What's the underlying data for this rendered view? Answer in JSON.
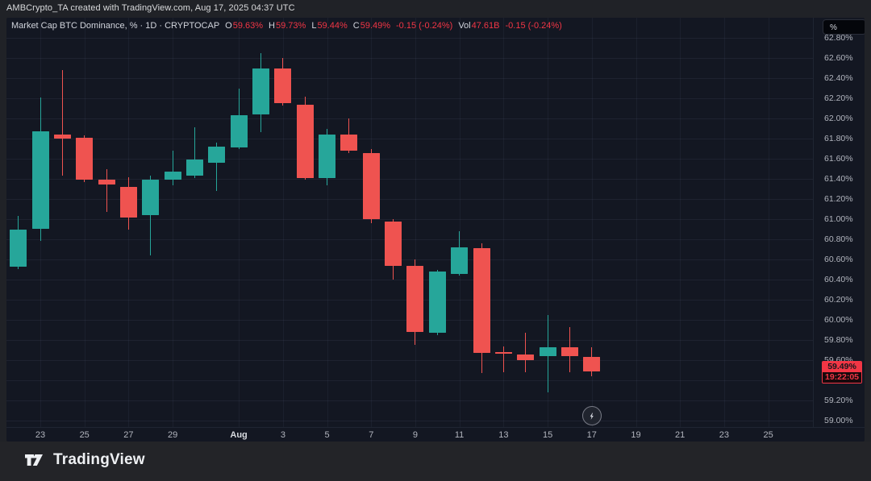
{
  "frame": {
    "attribution": "AMBCrypto_TA created with TradingView.com, Aug 17, 2025 04:37 UTC",
    "logo_text": "TradingView"
  },
  "toolbar": {
    "percent_button": "%"
  },
  "legend": {
    "title": "Market Cap BTC Dominance, % · 1D · CRYPTOCAP",
    "items": [
      {
        "label": "O",
        "value": "59.63%"
      },
      {
        "label": "H",
        "value": "59.73%"
      },
      {
        "label": "L",
        "value": "59.44%"
      },
      {
        "label": "C",
        "value": "59.49%"
      }
    ],
    "change": "-0.15 (-0.24%)",
    "vol_label": "Vol",
    "vol_value": "47.61B",
    "vol_change": "-0.15 (-0.24%)"
  },
  "price_label": {
    "value": 59.49,
    "price": "59.49%",
    "countdown": "19:22:05"
  },
  "colors": {
    "up": "#26a69a",
    "down": "#ef5350",
    "accent_red": "#f23645",
    "chart_bg": "#131722",
    "frame_bg": "#202227",
    "text": "#d1d4dc",
    "axis_text": "#b2b5be"
  },
  "chart_data": {
    "type": "candlestick",
    "title": "Market Cap BTC Dominance, %",
    "interval": "1D",
    "exchange": "CRYPTOCAP",
    "y_axis": {
      "top_value": 63.0,
      "bottom_value": 58.936,
      "ticks": [
        {
          "value": 62.8,
          "label": "62.80%"
        },
        {
          "value": 62.6,
          "label": "62.60%"
        },
        {
          "value": 62.4,
          "label": "62.40%"
        },
        {
          "value": 62.2,
          "label": "62.20%"
        },
        {
          "value": 62.0,
          "label": "62.00%"
        },
        {
          "value": 61.8,
          "label": "61.80%"
        },
        {
          "value": 61.6,
          "label": "61.60%"
        },
        {
          "value": 61.4,
          "label": "61.40%"
        },
        {
          "value": 61.2,
          "label": "61.20%"
        },
        {
          "value": 61.0,
          "label": "61.00%"
        },
        {
          "value": 60.8,
          "label": "60.80%"
        },
        {
          "value": 60.6,
          "label": "60.60%"
        },
        {
          "value": 60.4,
          "label": "60.40%"
        },
        {
          "value": 60.2,
          "label": "60.20%"
        },
        {
          "value": 60.0,
          "label": "60.00%"
        },
        {
          "value": 59.8,
          "label": "59.80%"
        },
        {
          "value": 59.6,
          "label": "59.60%"
        },
        {
          "value": 59.4,
          "label": ""
        },
        {
          "value": 59.2,
          "label": "59.20%"
        },
        {
          "value": 59.0,
          "label": "59.00%"
        }
      ]
    },
    "x_axis": {
      "ticks": [
        {
          "label": "23",
          "day": 1
        },
        {
          "label": "25",
          "day": 3
        },
        {
          "label": "27",
          "day": 5
        },
        {
          "label": "29",
          "day": 7
        },
        {
          "label": "Aug",
          "day": 10,
          "bold": true
        },
        {
          "label": "3",
          "day": 12
        },
        {
          "label": "5",
          "day": 14
        },
        {
          "label": "7",
          "day": 16
        },
        {
          "label": "9",
          "day": 18
        },
        {
          "label": "11",
          "day": 20
        },
        {
          "label": "13",
          "day": 22
        },
        {
          "label": "15",
          "day": 24
        },
        {
          "label": "17",
          "day": 26
        },
        {
          "label": "19",
          "day": 28
        },
        {
          "label": "21",
          "day": 30
        },
        {
          "label": "23",
          "day": 32
        },
        {
          "label": "25",
          "day": 34
        }
      ]
    },
    "candles": [
      {
        "date": "Jul 22",
        "day": 0,
        "o": 60.53,
        "h": 61.03,
        "l": 60.5,
        "c": 60.9
      },
      {
        "date": "Jul 23",
        "day": 1,
        "o": 60.9,
        "h": 62.21,
        "l": 60.78,
        "c": 61.87
      },
      {
        "date": "Jul 24",
        "day": 2,
        "o": 61.84,
        "h": 62.48,
        "l": 61.43,
        "c": 61.8
      },
      {
        "date": "Jul 25",
        "day": 3,
        "o": 61.81,
        "h": 61.83,
        "l": 61.37,
        "c": 61.39
      },
      {
        "date": "Jul 26",
        "day": 4,
        "o": 61.39,
        "h": 61.5,
        "l": 61.07,
        "c": 61.34
      },
      {
        "date": "Jul 27",
        "day": 5,
        "o": 61.32,
        "h": 61.42,
        "l": 60.9,
        "c": 61.02
      },
      {
        "date": "Jul 28",
        "day": 6,
        "o": 61.04,
        "h": 61.43,
        "l": 60.64,
        "c": 61.39
      },
      {
        "date": "Jul 29",
        "day": 7,
        "o": 61.39,
        "h": 61.68,
        "l": 61.34,
        "c": 61.47
      },
      {
        "date": "Jul 30",
        "day": 8,
        "o": 61.43,
        "h": 61.91,
        "l": 61.41,
        "c": 61.59
      },
      {
        "date": "Jul 31",
        "day": 9,
        "o": 61.56,
        "h": 61.76,
        "l": 61.28,
        "c": 61.72
      },
      {
        "date": "Aug 1",
        "day": 10,
        "o": 61.71,
        "h": 62.3,
        "l": 61.7,
        "c": 62.03
      },
      {
        "date": "Aug 2",
        "day": 11,
        "o": 62.04,
        "h": 62.65,
        "l": 61.86,
        "c": 62.5
      },
      {
        "date": "Aug 3",
        "day": 12,
        "o": 62.5,
        "h": 62.6,
        "l": 62.13,
        "c": 62.15
      },
      {
        "date": "Aug 4",
        "day": 13,
        "o": 62.14,
        "h": 62.22,
        "l": 61.39,
        "c": 61.41
      },
      {
        "date": "Aug 5",
        "day": 14,
        "o": 61.41,
        "h": 61.9,
        "l": 61.34,
        "c": 61.84
      },
      {
        "date": "Aug 6",
        "day": 15,
        "o": 61.84,
        "h": 62.0,
        "l": 61.66,
        "c": 61.68
      },
      {
        "date": "Aug 7",
        "day": 16,
        "o": 61.66,
        "h": 61.7,
        "l": 60.96,
        "c": 61.0
      },
      {
        "date": "Aug 8",
        "day": 17,
        "o": 60.98,
        "h": 61.0,
        "l": 60.4,
        "c": 60.54
      },
      {
        "date": "Aug 9",
        "day": 18,
        "o": 60.54,
        "h": 60.6,
        "l": 59.75,
        "c": 59.88
      },
      {
        "date": "Aug 10",
        "day": 19,
        "o": 59.87,
        "h": 60.5,
        "l": 59.85,
        "c": 60.48
      },
      {
        "date": "Aug 11",
        "day": 20,
        "o": 60.46,
        "h": 60.88,
        "l": 60.44,
        "c": 60.72
      },
      {
        "date": "Aug 12",
        "day": 21,
        "o": 60.71,
        "h": 60.76,
        "l": 59.47,
        "c": 59.67
      },
      {
        "date": "Aug 13",
        "day": 22,
        "o": 59.68,
        "h": 59.74,
        "l": 59.48,
        "c": 59.67
      },
      {
        "date": "Aug 14",
        "day": 23,
        "o": 59.66,
        "h": 59.87,
        "l": 59.48,
        "c": 59.6
      },
      {
        "date": "Aug 15",
        "day": 24,
        "o": 59.64,
        "h": 60.05,
        "l": 59.28,
        "c": 59.73
      },
      {
        "date": "Aug 16",
        "day": 25,
        "o": 59.73,
        "h": 59.93,
        "l": 59.48,
        "c": 59.64
      },
      {
        "date": "Aug 17",
        "day": 26,
        "o": 59.63,
        "h": 59.73,
        "l": 59.44,
        "c": 59.49
      }
    ]
  }
}
